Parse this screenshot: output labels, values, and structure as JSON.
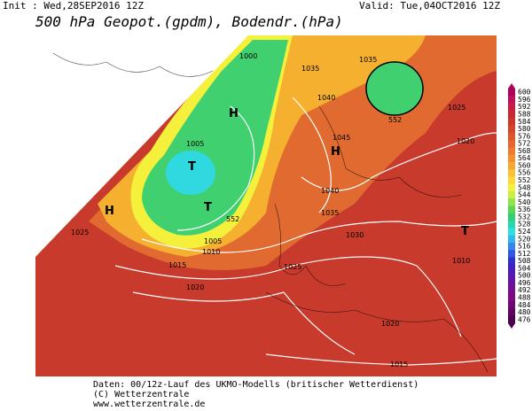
{
  "header": {
    "init": "Init : Wed,28SEP2016 12Z",
    "valid": "Valid: Tue,04OCT2016 12Z",
    "title": "500 hPa Geopot.(gpdm), Bodendr.(hPa)"
  },
  "map": {
    "pressure_labels": [
      "1000",
      "1035",
      "1035",
      "1040",
      "1045",
      "1025",
      "1020",
      "1005",
      "1040",
      "1035",
      "1030",
      "1025",
      "1010",
      "1025",
      "1005",
      "1010",
      "1015",
      "1020",
      "1020",
      "1015",
      "552",
      "552"
    ],
    "systems": [
      "H",
      "H",
      "T",
      "T",
      "H",
      "T"
    ]
  },
  "colorbar": [
    {
      "label": "600",
      "color": "#b0005a"
    },
    {
      "label": "596",
      "color": "#c0105a"
    },
    {
      "label": "592",
      "color": "#c81e46"
    },
    {
      "label": "588",
      "color": "#c82a32"
    },
    {
      "label": "584",
      "color": "#d03628"
    },
    {
      "label": "580",
      "color": "#d8442a"
    },
    {
      "label": "576",
      "color": "#e0542c"
    },
    {
      "label": "572",
      "color": "#e8662e"
    },
    {
      "label": "568",
      "color": "#ee7a2e"
    },
    {
      "label": "564",
      "color": "#f49030"
    },
    {
      "label": "560",
      "color": "#f8a832"
    },
    {
      "label": "556",
      "color": "#fcc034"
    },
    {
      "label": "552",
      "color": "#fcd838"
    },
    {
      "label": "548",
      "color": "#f4f03c"
    },
    {
      "label": "544",
      "color": "#c8f040"
    },
    {
      "label": "540",
      "color": "#90e448"
    },
    {
      "label": "536",
      "color": "#58d850"
    },
    {
      "label": "532",
      "color": "#30d070"
    },
    {
      "label": "528",
      "color": "#28d8a8"
    },
    {
      "label": "524",
      "color": "#30e0e0"
    },
    {
      "label": "520",
      "color": "#30b8f0"
    },
    {
      "label": "516",
      "color": "#3088f0"
    },
    {
      "label": "512",
      "color": "#3058e0"
    },
    {
      "label": "508",
      "color": "#3030d0"
    },
    {
      "label": "504",
      "color": "#4020c0"
    },
    {
      "label": "500",
      "color": "#5818b0"
    },
    {
      "label": "496",
      "color": "#6810a0"
    },
    {
      "label": "492",
      "color": "#780c90"
    },
    {
      "label": "488",
      "color": "#800880"
    },
    {
      "label": "484",
      "color": "#700670"
    },
    {
      "label": "480",
      "color": "#600460"
    },
    {
      "label": "476",
      "color": "#500050"
    }
  ],
  "footer": {
    "data": "Daten: 00/12z-Lauf des UKMO-Modells (britischer Wetterdienst)",
    "copyright": "(C) Wetterzentrale",
    "url": "www.wetterzentrale.de"
  }
}
